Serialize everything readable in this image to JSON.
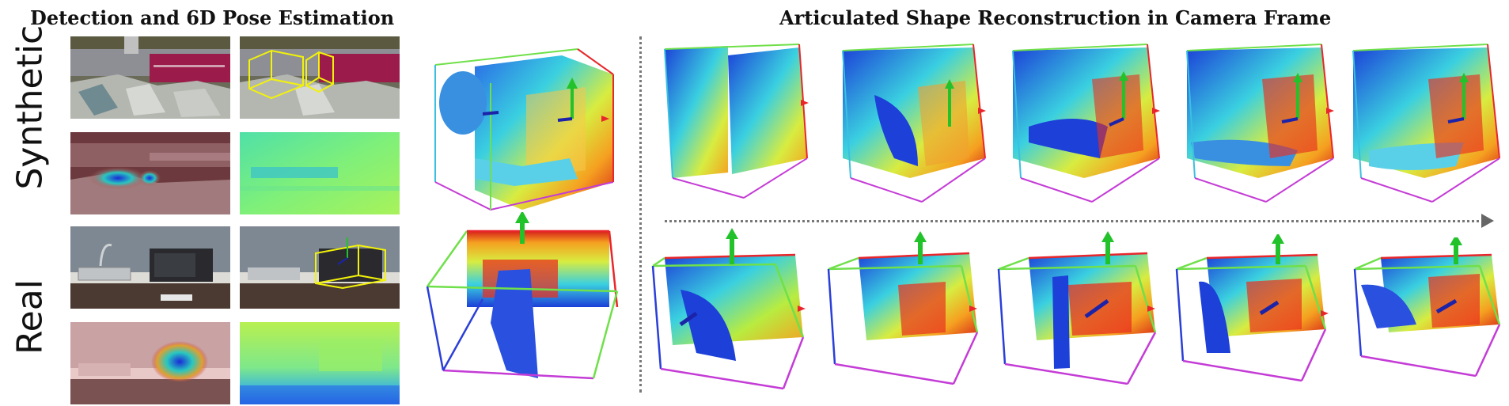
{
  "header": {
    "left_title": "Detection and 6D Pose Estimation",
    "right_title": "Articulated Shape Reconstruction in Camera Frame"
  },
  "rows": {
    "synthetic_label": "Synthetic",
    "real_label": "Real"
  },
  "colors": {
    "box_red": "#e8262b",
    "box_green": "#6fe04a",
    "box_blue": "#2a3fd8",
    "box_magenta": "#c43cd6",
    "axis_green": "#22c22a",
    "axis_blue": "#1c23a8",
    "bbox_yellow": "#f2f20a"
  },
  "icons": [
    "rotation-axis-arrow-icon",
    "progression-arrow-icon"
  ]
}
